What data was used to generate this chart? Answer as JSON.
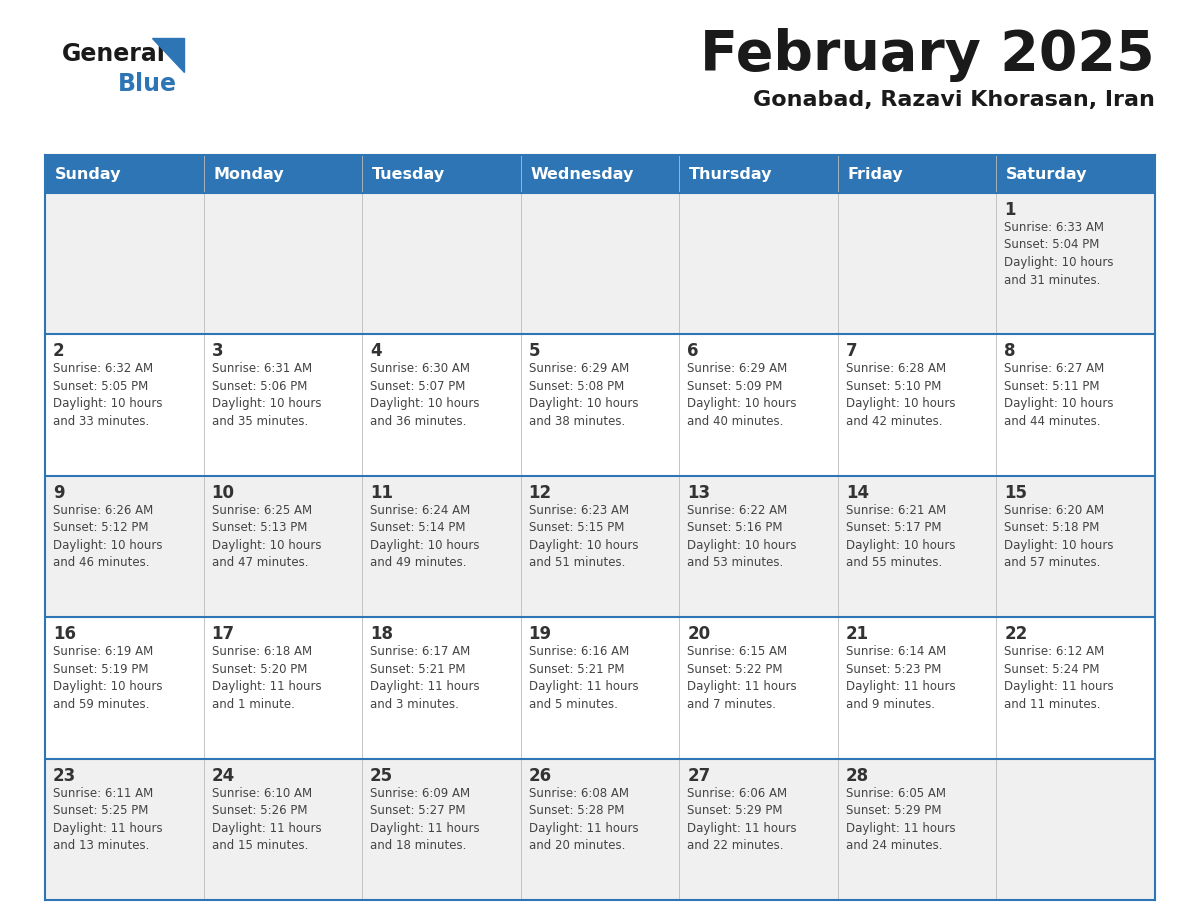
{
  "title": "February 2025",
  "subtitle": "Gonabad, Razavi Khorasan, Iran",
  "header_bg": "#2E75B6",
  "header_text_color": "#FFFFFF",
  "days_of_week": [
    "Sunday",
    "Monday",
    "Tuesday",
    "Wednesday",
    "Thursday",
    "Friday",
    "Saturday"
  ],
  "cell_bg_row0": "#F0F0F0",
  "cell_bg_row1": "#FFFFFF",
  "cell_bg_row2": "#F0F0F0",
  "cell_bg_row3": "#FFFFFF",
  "cell_bg_row4": "#F0F0F0",
  "cell_border_color": "#2E75B6",
  "day_num_color": "#333333",
  "info_text_color": "#444444",
  "logo_general_color": "#1a1a1a",
  "logo_blue_color": "#2E75B6",
  "calendar_data": [
    [
      null,
      null,
      null,
      null,
      null,
      null,
      {
        "day": 1,
        "sunrise": "6:33 AM",
        "sunset": "5:04 PM",
        "daylight": "10 hours",
        "daylight2": "and 31 minutes."
      }
    ],
    [
      {
        "day": 2,
        "sunrise": "6:32 AM",
        "sunset": "5:05 PM",
        "daylight": "10 hours",
        "daylight2": "and 33 minutes."
      },
      {
        "day": 3,
        "sunrise": "6:31 AM",
        "sunset": "5:06 PM",
        "daylight": "10 hours",
        "daylight2": "and 35 minutes."
      },
      {
        "day": 4,
        "sunrise": "6:30 AM",
        "sunset": "5:07 PM",
        "daylight": "10 hours",
        "daylight2": "and 36 minutes."
      },
      {
        "day": 5,
        "sunrise": "6:29 AM",
        "sunset": "5:08 PM",
        "daylight": "10 hours",
        "daylight2": "and 38 minutes."
      },
      {
        "day": 6,
        "sunrise": "6:29 AM",
        "sunset": "5:09 PM",
        "daylight": "10 hours",
        "daylight2": "and 40 minutes."
      },
      {
        "day": 7,
        "sunrise": "6:28 AM",
        "sunset": "5:10 PM",
        "daylight": "10 hours",
        "daylight2": "and 42 minutes."
      },
      {
        "day": 8,
        "sunrise": "6:27 AM",
        "sunset": "5:11 PM",
        "daylight": "10 hours",
        "daylight2": "and 44 minutes."
      }
    ],
    [
      {
        "day": 9,
        "sunrise": "6:26 AM",
        "sunset": "5:12 PM",
        "daylight": "10 hours",
        "daylight2": "and 46 minutes."
      },
      {
        "day": 10,
        "sunrise": "6:25 AM",
        "sunset": "5:13 PM",
        "daylight": "10 hours",
        "daylight2": "and 47 minutes."
      },
      {
        "day": 11,
        "sunrise": "6:24 AM",
        "sunset": "5:14 PM",
        "daylight": "10 hours",
        "daylight2": "and 49 minutes."
      },
      {
        "day": 12,
        "sunrise": "6:23 AM",
        "sunset": "5:15 PM",
        "daylight": "10 hours",
        "daylight2": "and 51 minutes."
      },
      {
        "day": 13,
        "sunrise": "6:22 AM",
        "sunset": "5:16 PM",
        "daylight": "10 hours",
        "daylight2": "and 53 minutes."
      },
      {
        "day": 14,
        "sunrise": "6:21 AM",
        "sunset": "5:17 PM",
        "daylight": "10 hours",
        "daylight2": "and 55 minutes."
      },
      {
        "day": 15,
        "sunrise": "6:20 AM",
        "sunset": "5:18 PM",
        "daylight": "10 hours",
        "daylight2": "and 57 minutes."
      }
    ],
    [
      {
        "day": 16,
        "sunrise": "6:19 AM",
        "sunset": "5:19 PM",
        "daylight": "10 hours",
        "daylight2": "and 59 minutes."
      },
      {
        "day": 17,
        "sunrise": "6:18 AM",
        "sunset": "5:20 PM",
        "daylight": "11 hours",
        "daylight2": "and 1 minute."
      },
      {
        "day": 18,
        "sunrise": "6:17 AM",
        "sunset": "5:21 PM",
        "daylight": "11 hours",
        "daylight2": "and 3 minutes."
      },
      {
        "day": 19,
        "sunrise": "6:16 AM",
        "sunset": "5:21 PM",
        "daylight": "11 hours",
        "daylight2": "and 5 minutes."
      },
      {
        "day": 20,
        "sunrise": "6:15 AM",
        "sunset": "5:22 PM",
        "daylight": "11 hours",
        "daylight2": "and 7 minutes."
      },
      {
        "day": 21,
        "sunrise": "6:14 AM",
        "sunset": "5:23 PM",
        "daylight": "11 hours",
        "daylight2": "and 9 minutes."
      },
      {
        "day": 22,
        "sunrise": "6:12 AM",
        "sunset": "5:24 PM",
        "daylight": "11 hours",
        "daylight2": "and 11 minutes."
      }
    ],
    [
      {
        "day": 23,
        "sunrise": "6:11 AM",
        "sunset": "5:25 PM",
        "daylight": "11 hours",
        "daylight2": "and 13 minutes."
      },
      {
        "day": 24,
        "sunrise": "6:10 AM",
        "sunset": "5:26 PM",
        "daylight": "11 hours",
        "daylight2": "and 15 minutes."
      },
      {
        "day": 25,
        "sunrise": "6:09 AM",
        "sunset": "5:27 PM",
        "daylight": "11 hours",
        "daylight2": "and 18 minutes."
      },
      {
        "day": 26,
        "sunrise": "6:08 AM",
        "sunset": "5:28 PM",
        "daylight": "11 hours",
        "daylight2": "and 20 minutes."
      },
      {
        "day": 27,
        "sunrise": "6:06 AM",
        "sunset": "5:29 PM",
        "daylight": "11 hours",
        "daylight2": "and 22 minutes."
      },
      {
        "day": 28,
        "sunrise": "6:05 AM",
        "sunset": "5:29 PM",
        "daylight": "11 hours",
        "daylight2": "and 24 minutes."
      },
      null
    ]
  ]
}
